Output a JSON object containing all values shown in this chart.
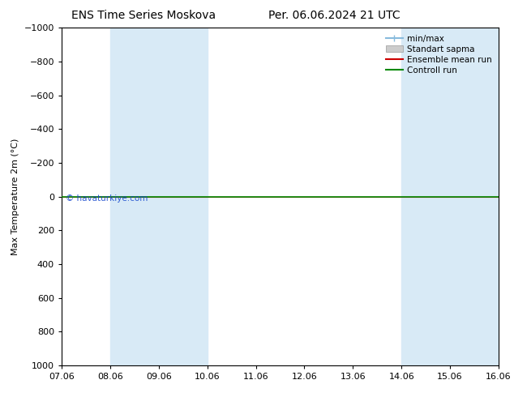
{
  "title_left": "ENS Time Series Moskova",
  "title_right": "Per. 06.06.2024 21 UTC",
  "ylabel": "Max Temperature 2m (°C)",
  "ylim_bottom": 1000,
  "ylim_top": -1000,
  "yticks": [
    -1000,
    -800,
    -600,
    -400,
    -200,
    0,
    200,
    400,
    600,
    800,
    1000
  ],
  "x_start": 0,
  "x_end": 9,
  "xtick_labels": [
    "07.06",
    "08.06",
    "09.06",
    "10.06",
    "11.06",
    "12.06",
    "13.06",
    "14.06",
    "15.06",
    "16.06"
  ],
  "xtick_positions": [
    0,
    1,
    2,
    3,
    4,
    5,
    6,
    7,
    8,
    9
  ],
  "shaded_columns": [
    [
      1.0,
      2.0
    ],
    [
      2.0,
      3.0
    ],
    [
      7.0,
      8.0
    ],
    [
      8.0,
      9.0
    ]
  ],
  "shade_color": "#d8eaf6",
  "green_line_y": 0,
  "green_line_color": "#008800",
  "red_line_y": 0,
  "red_line_color": "#cc0000",
  "background_color": "#ffffff",
  "plot_bg_color": "#ffffff",
  "watermark": "© havaturkiye.com",
  "legend_labels": [
    "min/max",
    "Standart sapma",
    "Ensemble mean run",
    "Controll run"
  ],
  "legend_minmax_color": "#88bbdd",
  "legend_sapma_color": "#cccccc",
  "legend_ensemble_color": "#cc0000",
  "legend_control_color": "#008800",
  "title_fontsize": 10,
  "axis_label_fontsize": 8,
  "tick_fontsize": 8,
  "legend_fontsize": 7.5
}
